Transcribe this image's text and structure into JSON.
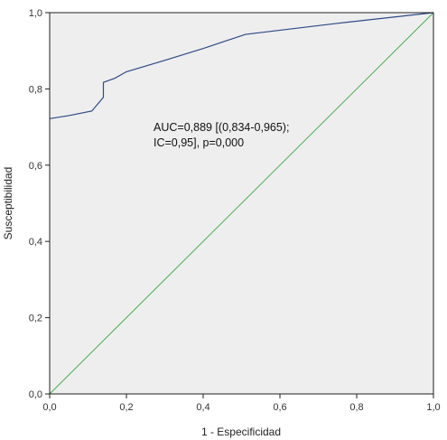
{
  "chart_data": {
    "type": "line",
    "title": "",
    "xlabel": "1 - Especificidad",
    "ylabel": "Susceptibilidad",
    "xlim": [
      0,
      1
    ],
    "ylim": [
      0,
      1
    ],
    "x_ticks": [
      "0,0",
      "0,2",
      "0,4",
      "0,6",
      "0,8",
      "1,0"
    ],
    "y_ticks": [
      "0,0",
      "0,2",
      "0,4",
      "0,6",
      "0,8",
      "1,0"
    ],
    "x_tick_values": [
      0,
      0.2,
      0.4,
      0.6,
      0.8,
      1.0
    ],
    "y_tick_values": [
      0,
      0.2,
      0.4,
      0.6,
      0.8,
      1.0
    ],
    "grid": false,
    "legend": "none",
    "series": [
      {
        "color": "#2e4a87",
        "points": [
          [
            0.0,
            0.722
          ],
          [
            0.05,
            0.73
          ],
          [
            0.11,
            0.742
          ],
          [
            0.14,
            0.778
          ],
          [
            0.14,
            0.817
          ],
          [
            0.17,
            0.828
          ],
          [
            0.2,
            0.845
          ],
          [
            0.29,
            0.872
          ],
          [
            0.4,
            0.906
          ],
          [
            0.51,
            0.943
          ],
          [
            0.75,
            0.972
          ],
          [
            1.0,
            1.0
          ]
        ]
      },
      {
        "color": "#4caf50",
        "points": [
          [
            0,
            0
          ],
          [
            1,
            1
          ]
        ]
      }
    ],
    "annotation": {
      "line1": "AUC=0,889 [(0,834-0,965);",
      "line2": "IC=0,95], p=0,000"
    },
    "plot_background": "#eeeeee",
    "frame_color": "#222222"
  }
}
